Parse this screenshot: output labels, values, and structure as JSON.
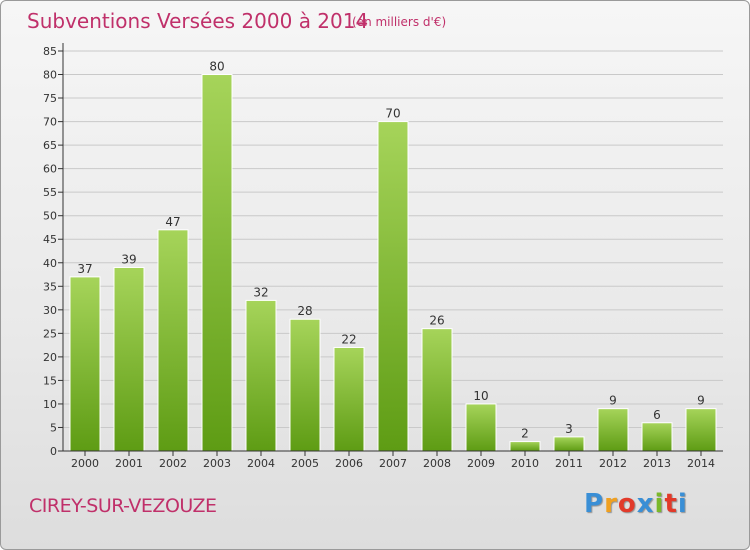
{
  "title": "Subventions Versées 2000 à 2014",
  "subtitle": "(en milliers d'€)",
  "commune": "CIREY-SUR-VEZOUZE",
  "brand": {
    "letters": [
      "P",
      "r",
      "o",
      "x",
      "i",
      "t",
      "i"
    ],
    "colors": [
      "#3a8fd6",
      "#f0a020",
      "#e23a2a",
      "#3a8fd6",
      "#7ab82a",
      "#e23a2a",
      "#3a8fd6"
    ]
  },
  "colors": {
    "title": "#c0306a",
    "bar_light": "#a6d45a",
    "bar_dark": "#5e9c14",
    "axis": "#333333",
    "grid": "#c9c9c9"
  },
  "chart_data": {
    "type": "bar",
    "categories": [
      "2000",
      "2001",
      "2002",
      "2003",
      "2004",
      "2005",
      "2006",
      "2007",
      "2008",
      "2009",
      "2010",
      "2011",
      "2012",
      "2013",
      "2014"
    ],
    "values": [
      37,
      39,
      47,
      80,
      32,
      28,
      22,
      70,
      26,
      10,
      2,
      3,
      9,
      6,
      9
    ],
    "data_labels": [
      "37",
      "39",
      "47",
      "80",
      "32",
      "28",
      "22",
      "70",
      "26",
      "10",
      "2",
      "3",
      "9",
      "6",
      "9"
    ],
    "yticks": [
      "0",
      "5",
      "10",
      "15",
      "20",
      "25",
      "30",
      "35",
      "40",
      "45",
      "50",
      "55",
      "60",
      "65",
      "70",
      "75",
      "80",
      "85"
    ],
    "ylim": [
      0,
      85
    ],
    "grid": true,
    "title": "Subventions Versées 2000 à 2014",
    "xlabel": "",
    "ylabel": ""
  }
}
